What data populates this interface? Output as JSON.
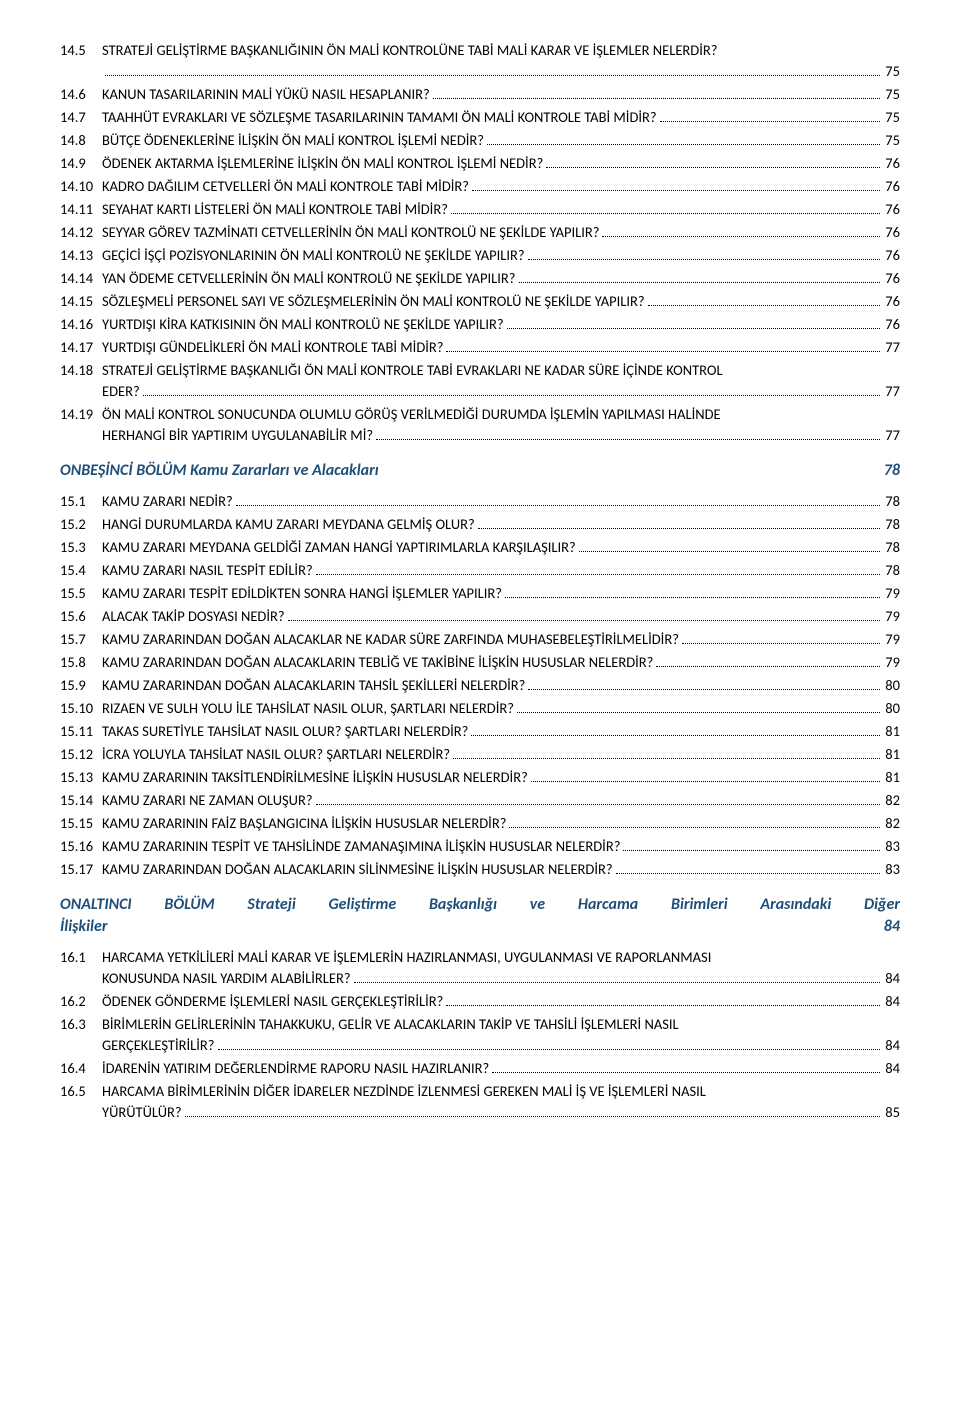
{
  "section14": {
    "entries": [
      {
        "num": "14.5",
        "text": "STRATEJİ GELİŞTİRME BAŞKANLIĞININ ÖN MALİ KONTROLÜNE TABİ MALİ KARAR VE İŞLEMLER NELERDİR?",
        "page": "75",
        "wrap": true,
        "cont": ""
      },
      {
        "num": "14.6",
        "text": "KANUN TASARILARININ MALİ YÜKÜ NASIL HESAPLANIR?",
        "page": "75"
      },
      {
        "num": "14.7",
        "text": "TAAHHÜT EVRAKLARI VE SÖZLEŞME TASARILARININ TAMAMI ÖN MALİ KONTROLE TABİ MİDİR?",
        "page": "75"
      },
      {
        "num": "14.8",
        "text": "BÜTÇE ÖDENEKLERİNE İLİŞKİN ÖN MALİ KONTROL İŞLEMİ NEDİR?",
        "page": "75"
      },
      {
        "num": "14.9",
        "text": "ÖDENEK AKTARMA İŞLEMLERİNE İLİŞKİN ÖN MALİ KONTROL İŞLEMİ NEDİR?",
        "page": "76"
      },
      {
        "num": "14.10",
        "text": "KADRO DAĞILIM CETVELLERİ ÖN MALİ KONTROLE TABİ MİDİR?",
        "page": "76"
      },
      {
        "num": "14.11",
        "text": "SEYAHAT KARTI LİSTELERİ ÖN MALİ KONTROLE TABİ MİDİR?",
        "page": "76"
      },
      {
        "num": "14.12",
        "text": "SEYYAR GÖREV TAZMİNATI CETVELLERİNİN ÖN MALİ KONTROLÜ NE ŞEKİLDE YAPILIR?",
        "page": "76"
      },
      {
        "num": "14.13",
        "text": "GEÇİCİ İŞÇİ POZİSYONLARININ ÖN MALİ KONTROLÜ NE ŞEKİLDE YAPILIR?",
        "page": "76"
      },
      {
        "num": "14.14",
        "text": "YAN ÖDEME CETVELLERİNİN ÖN MALİ KONTROLÜ NE ŞEKİLDE YAPILIR?",
        "page": "76"
      },
      {
        "num": "14.15",
        "text": "SÖZLEŞMELİ PERSONEL SAYI VE SÖZLEŞMELERİNİN ÖN MALİ KONTROLÜ NE ŞEKİLDE YAPILIR?",
        "page": "76"
      },
      {
        "num": "14.16",
        "text": "YURTDIŞI KİRA KATKISININ ÖN MALİ KONTROLÜ NE ŞEKİLDE YAPILIR?",
        "page": "76"
      },
      {
        "num": "14.17",
        "text": "YURTDIŞI GÜNDELİKLERİ ÖN MALİ KONTROLE TABİ MİDİR?",
        "page": "77"
      },
      {
        "num": "14.18",
        "text": "STRATEJİ GELİŞTİRME BAŞKANLIĞI ÖN MALİ KONTROLE TABİ EVRAKLARI NE KADAR SÜRE İÇİNDE KONTROL",
        "cont": "EDER?",
        "page": "77",
        "wrap": true
      },
      {
        "num": "14.19",
        "text": "ÖN MALİ KONTROL SONUCUNDA OLUMLU GÖRÜŞ VERİLMEDİĞİ DURUMDA İŞLEMİN YAPILMASI HALİNDE",
        "cont": "HERHANGİ BİR YAPTIRIM UYGULANABİLİR Mİ?",
        "page": "77",
        "wrap": true
      }
    ]
  },
  "section15": {
    "title": "ONBEŞİNCİ BÖLÜM Kamu Zararları ve Alacakları",
    "page": "78",
    "entries": [
      {
        "num": "15.1",
        "text": "KAMU ZARARI NEDİR?",
        "page": "78"
      },
      {
        "num": "15.2",
        "text": "HANGİ DURUMLARDA KAMU ZARARI MEYDANA GELMİŞ OLUR?",
        "page": "78"
      },
      {
        "num": "15.3",
        "text": "KAMU ZARARI MEYDANA GELDİĞİ ZAMAN HANGİ YAPTIRIMLARLA KARŞILAŞILIR?",
        "page": "78"
      },
      {
        "num": "15.4",
        "text": "KAMU ZARARI NASIL TESPİT EDİLİR?",
        "page": "78"
      },
      {
        "num": "15.5",
        "text": "KAMU ZARARI TESPİT EDİLDİKTEN SONRA HANGİ İŞLEMLER YAPILIR?",
        "page": "79"
      },
      {
        "num": "15.6",
        "text": "ALACAK TAKİP DOSYASI NEDİR?",
        "page": "79"
      },
      {
        "num": "15.7",
        "text": "KAMU ZARARINDAN DOĞAN ALACAKLAR NE KADAR SÜRE ZARFINDA MUHASEBELEŞTİRİLMELİDİR?",
        "page": "79"
      },
      {
        "num": "15.8",
        "text": "KAMU ZARARINDAN DOĞAN ALACAKLARIN TEBLİĞ VE TAKİBİNE İLİŞKİN HUSUSLAR NELERDİR?",
        "page": "79"
      },
      {
        "num": "15.9",
        "text": "KAMU ZARARINDAN DOĞAN ALACAKLARIN TAHSİL ŞEKİLLERİ NELERDİR?",
        "page": "80"
      },
      {
        "num": "15.10",
        "text": "RIZAEN VE SULH YOLU İLE TAHSİLAT NASIL OLUR, ŞARTLARI NELERDİR?",
        "page": "80"
      },
      {
        "num": "15.11",
        "text": "TAKAS SURETİYLE TAHSİLAT NASIL OLUR? ŞARTLARI NELERDİR?",
        "page": "81"
      },
      {
        "num": "15.12",
        "text": "İCRA YOLUYLA TAHSİLAT NASIL OLUR? ŞARTLARI NELERDİR?",
        "page": "81"
      },
      {
        "num": "15.13",
        "text": "KAMU ZARARININ TAKSİTLENDİRİLMESİNE İLİŞKİN HUSUSLAR NELERDİR?",
        "page": "81"
      },
      {
        "num": "15.14",
        "text": "KAMU ZARARI NE ZAMAN OLUŞUR?",
        "page": "82"
      },
      {
        "num": "15.15",
        "text": "KAMU ZARARININ FAİZ BAŞLANGICINA İLİŞKİN HUSUSLAR NELERDİR?",
        "page": "82"
      },
      {
        "num": "15.16",
        "text": "KAMU ZARARININ TESPİT VE TAHSİLİNDE ZAMANAŞIMINA İLİŞKİN HUSUSLAR NELERDİR?",
        "page": "83"
      },
      {
        "num": "15.17",
        "text": "KAMU ZARARINDAN DOĞAN ALACAKLARIN SİLİNMESİNE İLİŞKİN HUSUSLAR NELERDİR?",
        "page": "83"
      }
    ]
  },
  "section16": {
    "title": "ONALTINCI BÖLÜM Strateji Geliştirme Başkanlığı ve Harcama Birimleri Arasındaki Diğer İlişkiler",
    "page": "84",
    "entries": [
      {
        "num": "16.1",
        "text": "HARCAMA YETKİLİLERİ MALİ KARAR VE İŞLEMLERİN HAZIRLANMASI, UYGULANMASI VE RAPORLANMASI",
        "cont": "KONUSUNDA NASIL YARDIM ALABİLİRLER?",
        "page": "84",
        "wrap": true
      },
      {
        "num": "16.2",
        "text": "ÖDENEK GÖNDERME İŞLEMLERİ NASIL GERÇEKLEŞTİRİLİR?",
        "page": "84"
      },
      {
        "num": "16.3",
        "text": "BİRİMLERİN GELİRLERİNİN TAHAKKUKU, GELİR VE ALACAKLARIN TAKİP VE TAHSİLİ İŞLEMLERİ NASIL",
        "cont": "GERÇEKLEŞTİRİLİR?",
        "page": "84",
        "wrap": true
      },
      {
        "num": "16.4",
        "text": "İDARENİN YATIRIM DEĞERLENDİRME RAPORU NASIL HAZIRLANIR?",
        "page": "84"
      },
      {
        "num": "16.5",
        "text": "HARCAMA BİRİMLERİNİN DİĞER İDARELER NEZDİNDE İZLENMESİ GEREKEN MALİ İŞ VE İŞLEMLERİ NASIL",
        "cont": "YÜRÜTÜLÜR?",
        "page": "85",
        "wrap": true
      }
    ]
  }
}
